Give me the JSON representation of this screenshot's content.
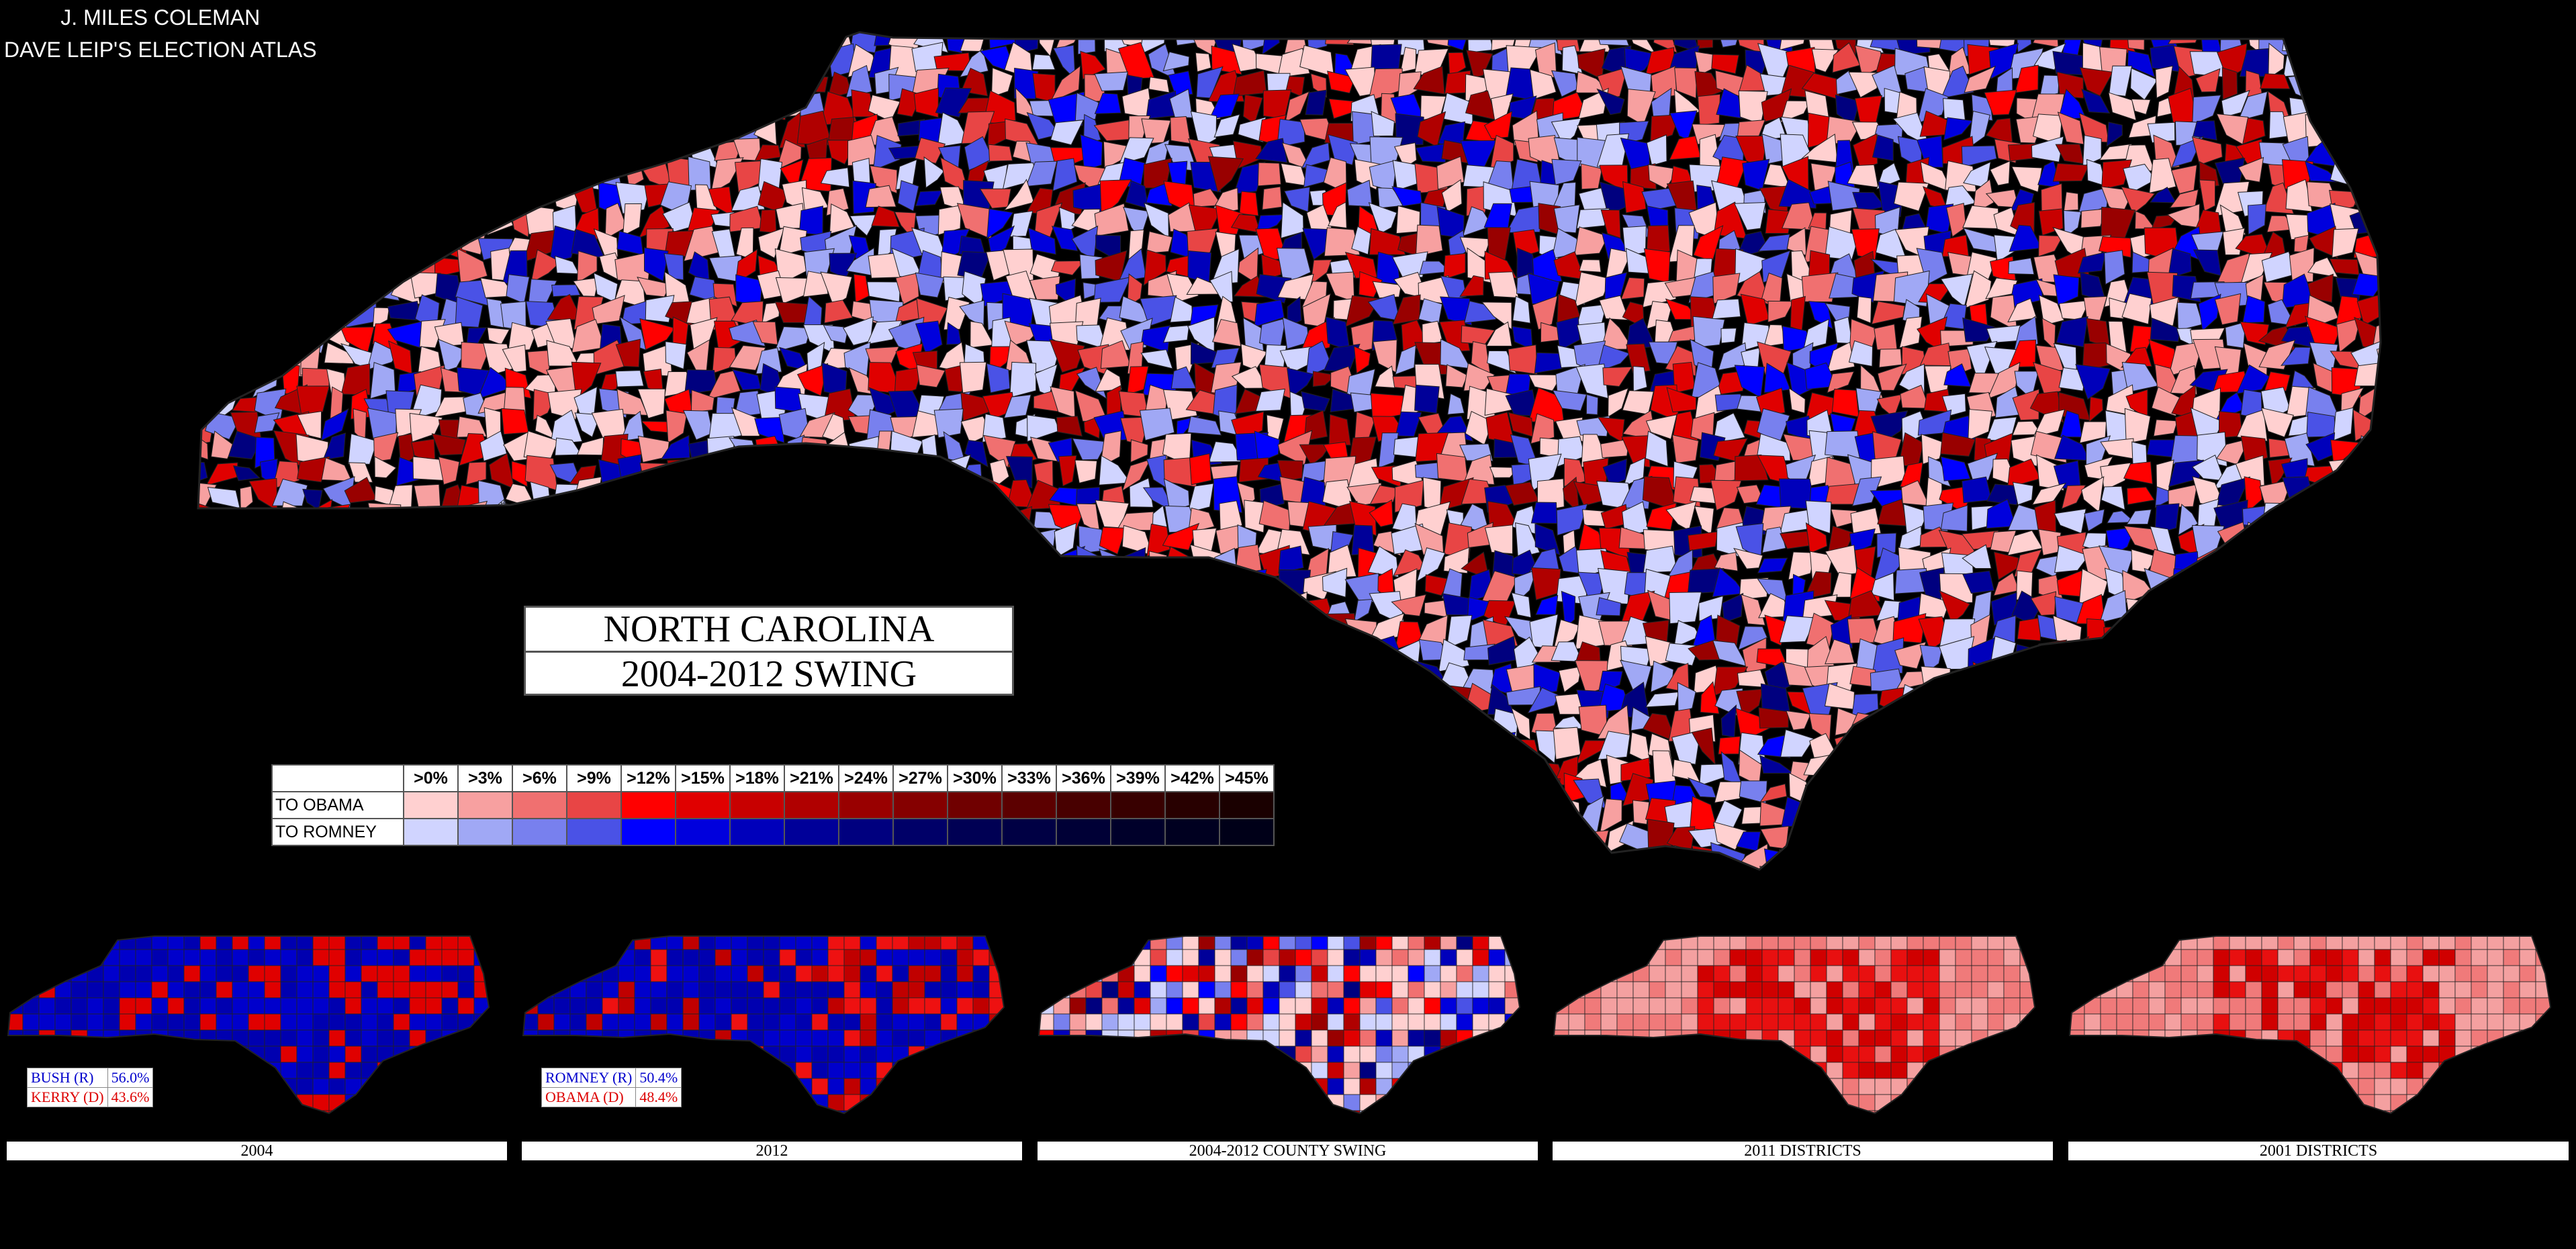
{
  "credits": {
    "author": "J. MILES COLEMAN",
    "source": "DAVE LEIP'S ELECTION ATLAS"
  },
  "title": {
    "state": "NORTH CAROLINA",
    "subtitle": "2004-2012 SWING"
  },
  "legend": {
    "thresholds": [
      ">0%",
      ">3%",
      ">6%",
      ">9%",
      ">12%",
      ">15%",
      ">18%",
      ">21%",
      ">24%",
      ">27%",
      ">30%",
      ">33%",
      ">36%",
      ">39%",
      ">42%",
      ">45%"
    ],
    "rows": [
      {
        "label": "TO OBAMA",
        "colors": [
          "#ffd0d0",
          "#f7a0a0",
          "#f07070",
          "#e84545",
          "#ff0000",
          "#e00000",
          "#c80000",
          "#b00000",
          "#990000",
          "#850000",
          "#700000",
          "#5c0000",
          "#480000",
          "#380000",
          "#280000",
          "#1a0000"
        ]
      },
      {
        "label": "TO ROMNEY",
        "colors": [
          "#d0d4ff",
          "#a0a8f5",
          "#7880ee",
          "#4a52e6",
          "#0000ff",
          "#0000dd",
          "#0000bb",
          "#000099",
          "#00007f",
          "#000068",
          "#000054",
          "#000044",
          "#000036",
          "#00002a",
          "#000020",
          "#000018"
        ]
      }
    ]
  },
  "panels": [
    {
      "caption": "2004",
      "results": [
        {
          "name": "BUSH (R)",
          "value": "56.0%",
          "color": "#0000cc"
        },
        {
          "name": "KERRY (D)",
          "value": "43.6%",
          "color": "#dd0000"
        }
      ]
    },
    {
      "caption": "2012",
      "results": [
        {
          "name": "ROMNEY (R)",
          "value": "50.4%",
          "color": "#0000cc"
        },
        {
          "name": "OBAMA (D)",
          "value": "48.4%",
          "color": "#dd0000"
        }
      ]
    },
    {
      "caption": "2004-2012 COUNTY SWING"
    },
    {
      "caption": "2011 DISTRICTS"
    },
    {
      "caption": "2001 DISTRICTS"
    }
  ],
  "colors": {
    "background": "#000000",
    "obama_swing": "#ff0000",
    "romney_swing": "#0000ff"
  }
}
